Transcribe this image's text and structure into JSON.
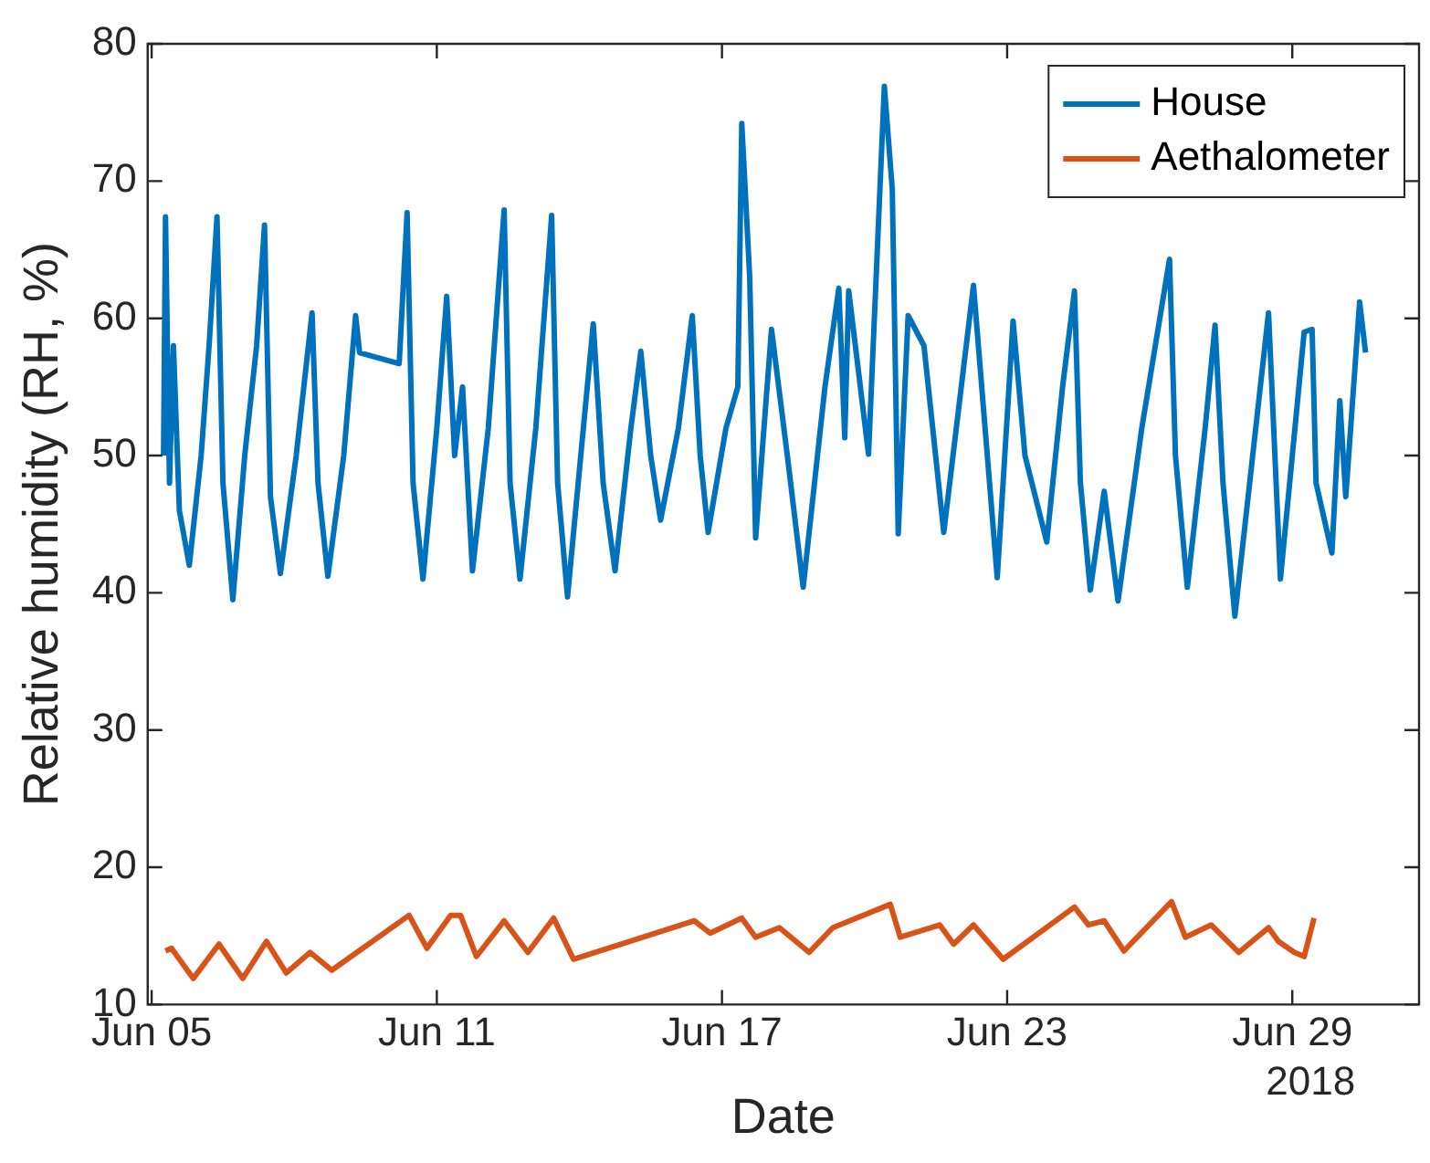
{
  "chart_data": {
    "type": "line",
    "xlabel": "Date",
    "ylabel": "Relative humidity (RH, %)",
    "xlim": [
      "2018-06-04T22:00",
      "2018-07-01T16:00"
    ],
    "xticks": [
      {
        "value": "2018-06-05",
        "label": "Jun 05"
      },
      {
        "value": "2018-06-11",
        "label": "Jun 11"
      },
      {
        "value": "2018-06-17",
        "label": "Jun 17"
      },
      {
        "value": "2018-06-23",
        "label": "Jun 23"
      },
      {
        "value": "2018-06-29",
        "label": "Jun 29"
      }
    ],
    "ylim": [
      10,
      80
    ],
    "yticks": [
      10,
      20,
      30,
      40,
      50,
      60,
      70,
      80
    ],
    "annotations": [
      "2018"
    ],
    "grid": false,
    "legend": "top right",
    "marker": "none",
    "line_style": "solid",
    "series": [
      {
        "name": "House",
        "color": "#0072bd",
        "x": [
          "2018-06-05T06:00",
          "2018-06-05T07:00",
          "2018-06-05T09:00",
          "2018-06-05T11:00",
          "2018-06-05T14:00",
          "2018-06-05T19:00",
          "2018-06-06T01:00",
          "2018-06-06T05:00",
          "2018-06-06T09:00",
          "2018-06-06T12:00",
          "2018-06-06T17:00",
          "2018-06-06T23:00",
          "2018-06-07T05:00",
          "2018-06-07T09:00",
          "2018-06-07T12:00",
          "2018-06-07T17:00",
          "2018-06-08T01:00",
          "2018-06-08T09:00",
          "2018-06-08T12:00",
          "2018-06-08T17:00",
          "2018-06-09T01:00",
          "2018-06-09T07:00",
          "2018-06-09T09:00",
          "2018-06-10T05:00",
          "2018-06-10T09:00",
          "2018-06-10T12:00",
          "2018-06-10T17:00",
          "2018-06-11T00:00",
          "2018-06-11T05:00",
          "2018-06-11T09:00",
          "2018-06-11T13:00",
          "2018-06-11T18:00",
          "2018-06-12T02:00",
          "2018-06-12T10:00",
          "2018-06-12T13:00",
          "2018-06-12T18:00",
          "2018-06-13T02:00",
          "2018-06-13T10:00",
          "2018-06-13T13:00",
          "2018-06-13T18:00",
          "2018-06-14T02:00",
          "2018-06-14T07:00",
          "2018-06-14T12:00",
          "2018-06-14T18:00",
          "2018-06-15T02:00",
          "2018-06-15T07:00",
          "2018-06-15T12:00",
          "2018-06-15T17:00",
          "2018-06-16T02:00",
          "2018-06-16T09:00",
          "2018-06-16T13:00",
          "2018-06-16T17:00",
          "2018-06-17T02:00",
          "2018-06-17T08:00",
          "2018-06-17T10:00",
          "2018-06-17T14:00",
          "2018-06-17T17:00",
          "2018-06-18T01:00",
          "2018-06-18T09:00",
          "2018-06-18T17:00",
          "2018-06-19T04:00",
          "2018-06-19T11:00",
          "2018-06-19T14:00",
          "2018-06-19T16:00",
          "2018-06-20T02:00",
          "2018-06-20T10:00",
          "2018-06-20T14:00",
          "2018-06-20T17:00",
          "2018-06-20T22:00",
          "2018-06-21T06:00",
          "2018-06-21T16:00",
          "2018-06-22T07:00",
          "2018-06-22T19:00",
          "2018-06-23T03:00",
          "2018-06-23T09:00",
          "2018-06-23T20:00",
          "2018-06-24T04:00",
          "2018-06-24T10:00",
          "2018-06-24T13:00",
          "2018-06-24T18:00",
          "2018-06-25T01:00",
          "2018-06-25T08:00",
          "2018-06-25T20:00",
          "2018-06-26T10:00",
          "2018-06-26T13:00",
          "2018-06-26T19:00",
          "2018-06-27T04:00",
          "2018-06-27T09:00",
          "2018-06-27T13:00",
          "2018-06-27T19:00",
          "2018-06-28T04:00",
          "2018-06-28T12:00",
          "2018-06-28T18:00",
          "2018-06-29T06:00",
          "2018-06-29T10:00",
          "2018-06-29T12:00",
          "2018-06-29T20:00",
          "2018-06-30T00:00",
          "2018-06-30T03:00",
          "2018-06-30T10:00",
          "2018-06-30T13:00"
        ],
        "values": [
          50,
          67.4,
          48,
          58,
          46,
          42,
          50,
          58,
          67.4,
          48,
          39.5,
          50,
          58,
          66.8,
          47,
          41.4,
          50,
          60.4,
          48,
          41.2,
          50,
          60.2,
          57.5,
          56.7,
          67.7,
          48,
          41,
          52,
          61.6,
          50,
          55,
          41.6,
          52,
          67.9,
          48,
          41,
          52,
          67.5,
          48,
          39.7,
          52,
          59.6,
          48,
          41.6,
          52,
          57.6,
          50,
          45.3,
          52,
          60.2,
          50,
          44.4,
          52,
          55,
          74.2,
          63,
          44,
          59.2,
          50,
          40.4,
          55,
          62.2,
          51.3,
          62,
          50.1,
          76.9,
          69.4,
          44.3,
          60.2,
          58,
          44.4,
          62.4,
          41.1,
          59.8,
          50,
          43.7,
          55,
          62,
          48,
          40.2,
          47.4,
          39.4,
          52,
          64.3,
          50,
          40.4,
          52,
          59.5,
          48,
          38.3,
          50,
          60.4,
          41,
          59,
          59.2,
          48,
          42.9,
          54,
          47,
          61.2,
          57.5
        ]
      },
      {
        "name": "Aethalometer",
        "color": "#d95319",
        "x": [
          "2018-06-05T07:00",
          "2018-06-05T10:00",
          "2018-06-05T21:00",
          "2018-06-06T10:00",
          "2018-06-06T22:00",
          "2018-06-07T10:00",
          "2018-06-07T20:00",
          "2018-06-08T08:00",
          "2018-06-08T19:00",
          "2018-06-10T10:00",
          "2018-06-10T19:00",
          "2018-06-11T07:00",
          "2018-06-11T12:00",
          "2018-06-11T20:00",
          "2018-06-12T10:00",
          "2018-06-12T22:00",
          "2018-06-13T11:00",
          "2018-06-13T21:00",
          "2018-06-16T10:00",
          "2018-06-16T18:00",
          "2018-06-17T10:00",
          "2018-06-17T17:00",
          "2018-06-18T05:00",
          "2018-06-18T20:00",
          "2018-06-19T08:00",
          "2018-06-20T13:00",
          "2018-06-20T18:00",
          "2018-06-21T14:00",
          "2018-06-21T21:00",
          "2018-06-22T07:00",
          "2018-06-22T22:00",
          "2018-06-24T10:00",
          "2018-06-24T17:00",
          "2018-06-25T01:00",
          "2018-06-25T11:00",
          "2018-06-26T11:00",
          "2018-06-26T18:00",
          "2018-06-27T07:00",
          "2018-06-27T21:00",
          "2018-06-28T12:00",
          "2018-06-28T17:00",
          "2018-06-29T01:00",
          "2018-06-29T06:00",
          "2018-06-29T11:00"
        ],
        "values": [
          13.9,
          14.1,
          11.9,
          14.4,
          11.9,
          14.6,
          12.3,
          13.8,
          12.5,
          16.5,
          14.1,
          16.5,
          16.5,
          13.5,
          16.1,
          13.8,
          16.3,
          13.3,
          16.1,
          15.2,
          16.3,
          14.9,
          15.6,
          13.8,
          15.6,
          17.3,
          14.9,
          15.8,
          14.4,
          15.8,
          13.3,
          17.1,
          15.8,
          16.1,
          13.9,
          17.5,
          14.9,
          15.8,
          13.8,
          15.6,
          14.6,
          13.8,
          13.5,
          16.3
        ]
      }
    ]
  }
}
